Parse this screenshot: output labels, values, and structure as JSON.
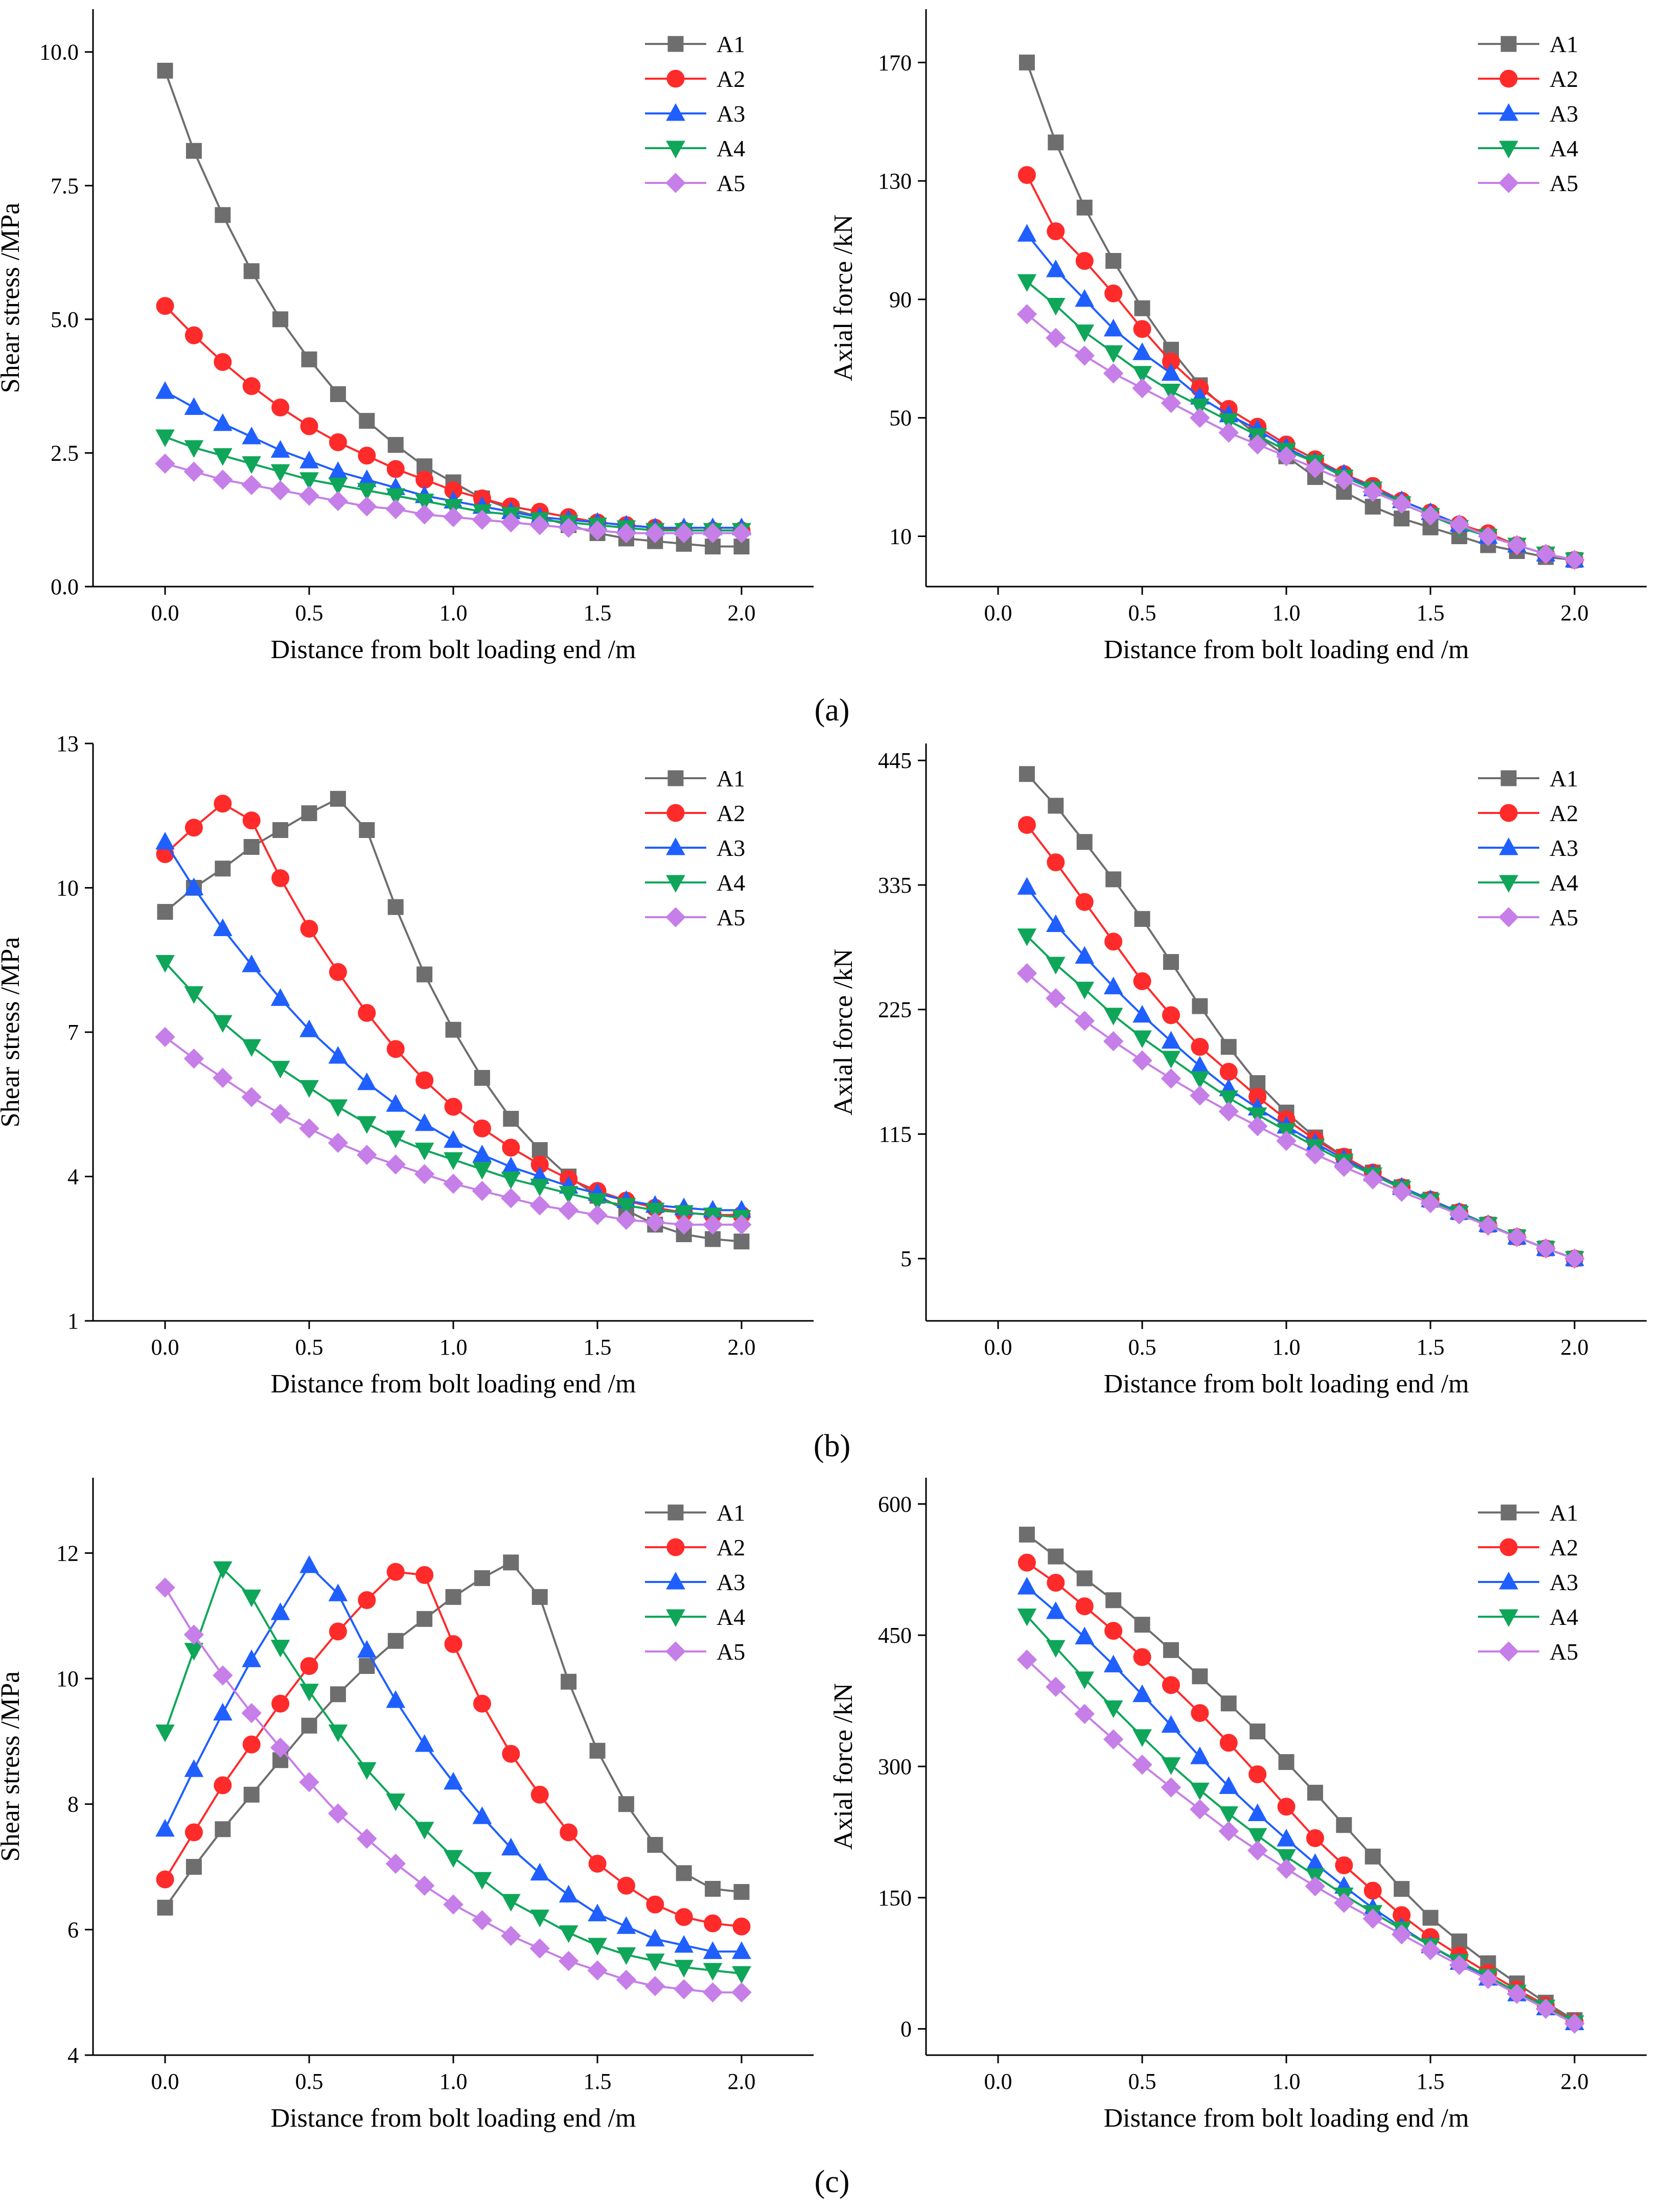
{
  "figure": {
    "series_names": [
      "A1",
      "A2",
      "A3",
      "A4",
      "A5"
    ],
    "series_colors": [
      "#6e6e6e",
      "#ff2a2a",
      "#1f5fff",
      "#0fa65a",
      "#c67ee8"
    ],
    "series_markers": [
      "square",
      "circle",
      "triangle-up",
      "triangle-down",
      "diamond"
    ],
    "panel_labels": [
      "(a)",
      "(b)",
      "(c)"
    ]
  },
  "chart_data": [
    {
      "id": "a-shear",
      "type": "line",
      "xlabel": "Distance from bolt loading end /m",
      "ylabel": "Shear stress /MPa",
      "xlim": [
        -0.25,
        2.25
      ],
      "ylim": [
        0,
        10.8
      ],
      "xticks": [
        0,
        0.5,
        1,
        1.5,
        2
      ],
      "xtick_labels": [
        "0.0",
        "0.5",
        "1.0",
        "1.5",
        "2.0"
      ],
      "yticks": [
        0,
        2.5,
        5,
        7.5,
        10
      ],
      "ytick_labels": [
        "0.0",
        "2.5",
        "5.0",
        "7.5",
        "10.0"
      ],
      "x": [
        0,
        0.1,
        0.2,
        0.3,
        0.4,
        0.5,
        0.6,
        0.7,
        0.8,
        0.9,
        1.0,
        1.1,
        1.2,
        1.3,
        1.4,
        1.5,
        1.6,
        1.7,
        1.8,
        1.9,
        2.0
      ],
      "legend": "top-right",
      "series": [
        {
          "name": "A1",
          "values": [
            9.65,
            8.15,
            6.95,
            5.9,
            5.0,
            4.25,
            3.6,
            3.1,
            2.65,
            2.25,
            1.95,
            1.65,
            1.45,
            1.3,
            1.15,
            1.0,
            0.9,
            0.85,
            0.8,
            0.75,
            0.75
          ]
        },
        {
          "name": "A2",
          "values": [
            5.25,
            4.7,
            4.2,
            3.75,
            3.35,
            3.0,
            2.7,
            2.45,
            2.2,
            2.0,
            1.8,
            1.65,
            1.5,
            1.4,
            1.3,
            1.2,
            1.15,
            1.1,
            1.05,
            1.05,
            1.05
          ]
        },
        {
          "name": "A3",
          "values": [
            3.65,
            3.35,
            3.05,
            2.8,
            2.55,
            2.35,
            2.15,
            2.0,
            1.85,
            1.7,
            1.6,
            1.5,
            1.4,
            1.3,
            1.25,
            1.2,
            1.15,
            1.1,
            1.1,
            1.1,
            1.1
          ]
        },
        {
          "name": "A4",
          "values": [
            2.8,
            2.6,
            2.45,
            2.3,
            2.15,
            2.0,
            1.9,
            1.8,
            1.7,
            1.6,
            1.5,
            1.4,
            1.35,
            1.25,
            1.2,
            1.15,
            1.1,
            1.05,
            1.05,
            1.05,
            1.05
          ]
        },
        {
          "name": "A5",
          "values": [
            2.3,
            2.15,
            2.0,
            1.9,
            1.8,
            1.7,
            1.6,
            1.5,
            1.45,
            1.35,
            1.3,
            1.25,
            1.2,
            1.15,
            1.1,
            1.05,
            1.0,
            1.0,
            1.0,
            1.0,
            1.0
          ]
        }
      ]
    },
    {
      "id": "a-axial",
      "type": "line",
      "xlabel": "Distance from bolt loading end /m",
      "ylabel": "Axial force /kN",
      "xlim": [
        -0.25,
        2.25
      ],
      "ylim": [
        -7,
        188
      ],
      "xticks": [
        0,
        0.5,
        1,
        1.5,
        2
      ],
      "xtick_labels": [
        "0.0",
        "0.5",
        "1.0",
        "1.5",
        "2.0"
      ],
      "yticks": [
        10,
        50,
        90,
        130,
        170
      ],
      "ytick_labels": [
        "10",
        "50",
        "90",
        "130",
        "170"
      ],
      "x": [
        0.1,
        0.2,
        0.3,
        0.4,
        0.5,
        0.6,
        0.7,
        0.8,
        0.9,
        1.0,
        1.1,
        1.2,
        1.3,
        1.4,
        1.5,
        1.6,
        1.7,
        1.8,
        1.9,
        2.0
      ],
      "legend": "top-right",
      "series": [
        {
          "name": "A1",
          "values": [
            170,
            143,
            121,
            103,
            87,
            73,
            61,
            52,
            44,
            37,
            30,
            25,
            20,
            16,
            13,
            10,
            7,
            5,
            3,
            2
          ]
        },
        {
          "name": "A2",
          "values": [
            132,
            113,
            103,
            92,
            80,
            69,
            60,
            53,
            47,
            41,
            36,
            31,
            27,
            22,
            18,
            14,
            11,
            7,
            4,
            2
          ]
        },
        {
          "name": "A3",
          "values": [
            112,
            100,
            90,
            80,
            72,
            65,
            57,
            51,
            46,
            40,
            35,
            31,
            26,
            22,
            18,
            14,
            10,
            7,
            4,
            2
          ]
        },
        {
          "name": "A4",
          "values": [
            96,
            88,
            79,
            72,
            65,
            59,
            54,
            49,
            44,
            39,
            35,
            30,
            26,
            21,
            17,
            13,
            10,
            7,
            4,
            2
          ]
        },
        {
          "name": "A5",
          "values": [
            85,
            77,
            71,
            65,
            60,
            55,
            50,
            45,
            41,
            37,
            33,
            29,
            25,
            21,
            17,
            14,
            10,
            7,
            4,
            2
          ]
        }
      ]
    },
    {
      "id": "b-shear",
      "type": "line",
      "xlabel": "Distance from bolt loading end /m",
      "ylabel": "Shear stress /MPa",
      "xlim": [
        -0.25,
        2.25
      ],
      "ylim": [
        1,
        13
      ],
      "xticks": [
        0,
        0.5,
        1,
        1.5,
        2
      ],
      "xtick_labels": [
        "0.0",
        "0.5",
        "1.0",
        "1.5",
        "2.0"
      ],
      "yticks": [
        1,
        4,
        7,
        10,
        13
      ],
      "ytick_labels": [
        "1",
        "4",
        "7",
        "10",
        "13"
      ],
      "x": [
        0,
        0.1,
        0.2,
        0.3,
        0.4,
        0.5,
        0.6,
        0.7,
        0.8,
        0.9,
        1.0,
        1.1,
        1.2,
        1.3,
        1.4,
        1.5,
        1.6,
        1.7,
        1.8,
        1.9,
        2.0
      ],
      "legend": "top-right",
      "series": [
        {
          "name": "A1",
          "values": [
            9.5,
            10.0,
            10.4,
            10.85,
            11.2,
            11.55,
            11.85,
            11.2,
            9.6,
            8.2,
            7.05,
            6.05,
            5.2,
            4.55,
            4.0,
            3.6,
            3.3,
            3.0,
            2.8,
            2.7,
            2.65
          ]
        },
        {
          "name": "A2",
          "values": [
            10.7,
            11.25,
            11.75,
            11.4,
            10.2,
            9.15,
            8.25,
            7.4,
            6.65,
            6.0,
            5.45,
            5.0,
            4.6,
            4.25,
            3.95,
            3.7,
            3.5,
            3.35,
            3.25,
            3.2,
            3.2
          ]
        },
        {
          "name": "A3",
          "values": [
            10.95,
            10.0,
            9.15,
            8.4,
            7.7,
            7.05,
            6.5,
            5.95,
            5.5,
            5.1,
            4.75,
            4.45,
            4.2,
            4.0,
            3.8,
            3.65,
            3.5,
            3.4,
            3.35,
            3.3,
            3.3
          ]
        },
        {
          "name": "A4",
          "values": [
            8.45,
            7.8,
            7.2,
            6.7,
            6.25,
            5.85,
            5.45,
            5.1,
            4.8,
            4.55,
            4.35,
            4.15,
            3.95,
            3.8,
            3.65,
            3.5,
            3.4,
            3.3,
            3.25,
            3.2,
            3.15
          ]
        },
        {
          "name": "A5",
          "values": [
            6.9,
            6.45,
            6.05,
            5.65,
            5.3,
            5.0,
            4.7,
            4.45,
            4.25,
            4.05,
            3.85,
            3.7,
            3.55,
            3.4,
            3.3,
            3.2,
            3.1,
            3.05,
            3.0,
            3.0,
            3.0
          ]
        }
      ]
    },
    {
      "id": "b-axial",
      "type": "line",
      "xlabel": "Distance from bolt loading end /m",
      "ylabel": "Axial force /kN",
      "xlim": [
        -0.25,
        2.25
      ],
      "ylim": [
        -50,
        460
      ],
      "xticks": [
        0,
        0.5,
        1,
        1.5,
        2
      ],
      "xtick_labels": [
        "0.0",
        "0.5",
        "1.0",
        "1.5",
        "2.0"
      ],
      "yticks": [
        5,
        115,
        225,
        335,
        445
      ],
      "ytick_labels": [
        "5",
        "115",
        "225",
        "335",
        "445"
      ],
      "x": [
        0.1,
        0.2,
        0.3,
        0.4,
        0.5,
        0.6,
        0.7,
        0.8,
        0.9,
        1.0,
        1.1,
        1.2,
        1.3,
        1.4,
        1.5,
        1.6,
        1.7,
        1.8,
        1.9,
        2.0
      ],
      "legend": "top-right",
      "series": [
        {
          "name": "A1",
          "values": [
            433,
            405,
            373,
            340,
            305,
            267,
            228,
            192,
            160,
            134,
            112,
            95,
            81,
            68,
            57,
            46,
            35,
            24,
            14,
            5
          ]
        },
        {
          "name": "A2",
          "values": [
            388,
            355,
            320,
            285,
            250,
            220,
            192,
            170,
            148,
            128,
            110,
            95,
            81,
            68,
            57,
            46,
            35,
            24,
            14,
            5
          ]
        },
        {
          "name": "A3",
          "values": [
            333,
            300,
            272,
            245,
            220,
            197,
            175,
            155,
            138,
            122,
            107,
            93,
            80,
            68,
            57,
            46,
            35,
            24,
            14,
            5
          ]
        },
        {
          "name": "A4",
          "values": [
            290,
            265,
            243,
            220,
            200,
            182,
            164,
            147,
            132,
            118,
            104,
            91,
            79,
            67,
            56,
            45,
            35,
            24,
            14,
            5
          ]
        },
        {
          "name": "A5",
          "values": [
            257,
            235,
            215,
            197,
            180,
            164,
            149,
            135,
            122,
            109,
            97,
            86,
            75,
            64,
            54,
            44,
            34,
            24,
            14,
            5
          ]
        }
      ]
    },
    {
      "id": "c-shear",
      "type": "line",
      "xlabel": "Distance from bolt loading end /m",
      "ylabel": "Shear stress /MPa",
      "xlim": [
        -0.25,
        2.25
      ],
      "ylim": [
        4,
        13.2
      ],
      "xticks": [
        0,
        0.5,
        1,
        1.5,
        2
      ],
      "xtick_labels": [
        "0.0",
        "0.5",
        "1.0",
        "1.5",
        "2.0"
      ],
      "yticks": [
        4,
        6,
        8,
        10,
        12
      ],
      "ytick_labels": [
        "4",
        "6",
        "8",
        "10",
        "12"
      ],
      "x": [
        0,
        0.1,
        0.2,
        0.3,
        0.4,
        0.5,
        0.6,
        0.7,
        0.8,
        0.9,
        1.0,
        1.1,
        1.2,
        1.3,
        1.4,
        1.5,
        1.6,
        1.7,
        1.8,
        1.9,
        2.0
      ],
      "legend": "top-right",
      "series": [
        {
          "name": "A1",
          "values": [
            6.35,
            7.0,
            7.6,
            8.15,
            8.7,
            9.25,
            9.75,
            10.2,
            10.6,
            10.95,
            11.3,
            11.6,
            11.85,
            11.3,
            9.95,
            8.85,
            8.0,
            7.35,
            6.9,
            6.65,
            6.6
          ]
        },
        {
          "name": "A2",
          "values": [
            6.8,
            7.55,
            8.3,
            8.95,
            9.6,
            10.2,
            10.75,
            11.25,
            11.7,
            11.65,
            10.55,
            9.6,
            8.8,
            8.15,
            7.55,
            7.05,
            6.7,
            6.4,
            6.2,
            6.1,
            6.05
          ]
        },
        {
          "name": "A3",
          "values": [
            7.6,
            8.55,
            9.45,
            10.3,
            11.05,
            11.8,
            11.35,
            10.45,
            9.65,
            8.95,
            8.35,
            7.8,
            7.3,
            6.9,
            6.55,
            6.25,
            6.05,
            5.85,
            5.75,
            5.65,
            5.65
          ]
        },
        {
          "name": "A4",
          "values": [
            9.15,
            10.45,
            11.75,
            11.3,
            10.5,
            9.8,
            9.15,
            8.55,
            8.05,
            7.6,
            7.15,
            6.8,
            6.45,
            6.2,
            5.95,
            5.75,
            5.6,
            5.5,
            5.4,
            5.35,
            5.3
          ]
        },
        {
          "name": "A5",
          "values": [
            11.45,
            10.7,
            10.05,
            9.45,
            8.9,
            8.35,
            7.85,
            7.45,
            7.05,
            6.7,
            6.4,
            6.15,
            5.9,
            5.7,
            5.5,
            5.35,
            5.2,
            5.1,
            5.05,
            5.0,
            5.0
          ]
        }
      ]
    },
    {
      "id": "c-axial",
      "type": "line",
      "xlabel": "Distance from bolt loading end /m",
      "ylabel": "Axial force /kN",
      "xlim": [
        -0.25,
        2.25
      ],
      "ylim": [
        -30,
        630
      ],
      "xticks": [
        0,
        0.5,
        1,
        1.5,
        2
      ],
      "xtick_labels": [
        "0.0",
        "0.5",
        "1.0",
        "1.5",
        "2.0"
      ],
      "yticks": [
        0,
        150,
        300,
        450,
        600
      ],
      "ytick_labels": [
        "0",
        "150",
        "300",
        "450",
        "600"
      ],
      "x": [
        0.1,
        0.2,
        0.3,
        0.4,
        0.5,
        0.6,
        0.7,
        0.8,
        0.9,
        1.0,
        1.1,
        1.2,
        1.3,
        1.4,
        1.5,
        1.6,
        1.7,
        1.8,
        1.9,
        2.0
      ],
      "legend": "top-right",
      "series": [
        {
          "name": "A1",
          "values": [
            565,
            540,
            515,
            490,
            462,
            433,
            403,
            372,
            340,
            305,
            270,
            233,
            197,
            160,
            127,
            100,
            75,
            52,
            30,
            10
          ]
        },
        {
          "name": "A2",
          "values": [
            533,
            510,
            483,
            455,
            425,
            393,
            361,
            327,
            291,
            254,
            218,
            187,
            158,
            130,
            105,
            84,
            64,
            45,
            27,
            8
          ]
        },
        {
          "name": "A3",
          "values": [
            505,
            477,
            448,
            416,
            382,
            347,
            311,
            277,
            246,
            217,
            189,
            163,
            138,
            116,
            95,
            76,
            58,
            40,
            24,
            7
          ]
        },
        {
          "name": "A4",
          "values": [
            472,
            436,
            400,
            367,
            334,
            302,
            273,
            246,
            221,
            197,
            175,
            153,
            133,
            114,
            95,
            77,
            60,
            42,
            25,
            7
          ]
        },
        {
          "name": "A5",
          "values": [
            422,
            391,
            360,
            331,
            302,
            276,
            251,
            226,
            204,
            183,
            163,
            144,
            126,
            108,
            90,
            73,
            57,
            40,
            23,
            6
          ]
        }
      ]
    }
  ]
}
